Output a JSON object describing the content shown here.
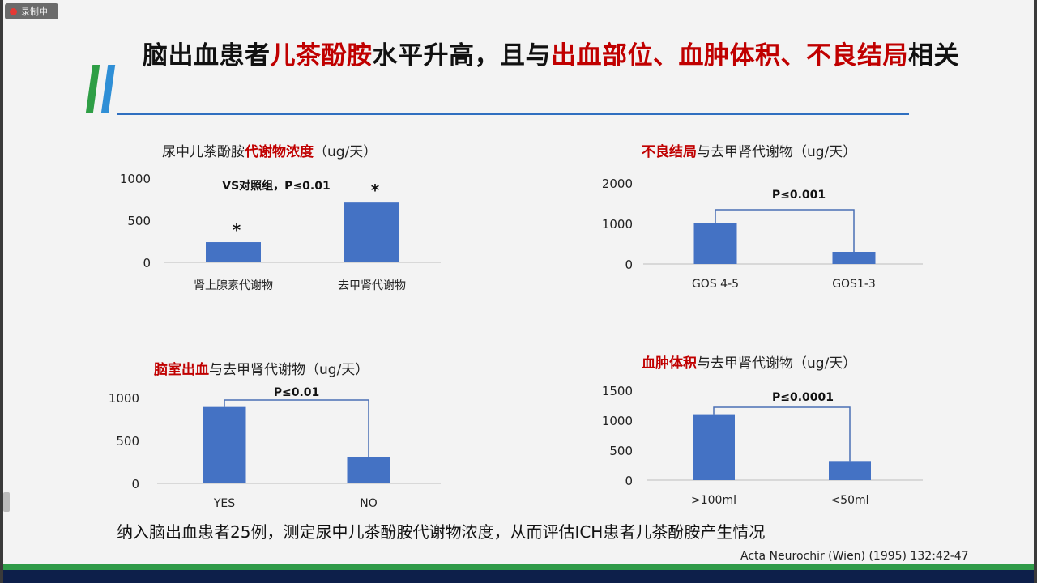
{
  "recording_badge": "录制中",
  "title": {
    "parts": [
      {
        "text": "脑出血患者",
        "red": false
      },
      {
        "text": "儿茶酚胺",
        "red": true
      },
      {
        "text": "水平升高，且与",
        "red": false
      },
      {
        "text": "出血部位、血肿体积、不良结局",
        "red": true
      },
      {
        "text": "相关",
        "red": false
      }
    ]
  },
  "chart_data": [
    {
      "type": "bar",
      "title_parts": [
        {
          "text": "尿中儿茶酚胺",
          "red": false
        },
        {
          "text": "代谢物浓度",
          "red": true
        },
        {
          "text": "（ug/天）",
          "red": false
        }
      ],
      "categories": [
        "肾上腺素代谢物",
        "去甲肾代谢物"
      ],
      "values": [
        240,
        710
      ],
      "ylim": [
        0,
        1000
      ],
      "yticks": [
        0,
        500,
        1000
      ],
      "annotation": "VS对照组，P≤0.01",
      "markers": [
        "*",
        "*"
      ]
    },
    {
      "type": "bar",
      "title_parts": [
        {
          "text": "不良结局",
          "red": true
        },
        {
          "text": "与去甲肾代谢物（ug/天）",
          "red": false
        }
      ],
      "categories": [
        "GOS 4-5",
        "GOS1-3"
      ],
      "values": [
        1000,
        300
      ],
      "ylim": [
        0,
        2000
      ],
      "yticks": [
        0,
        1000,
        2000
      ],
      "annotation": "P≤0.001"
    },
    {
      "type": "bar",
      "title_parts": [
        {
          "text": "脑室出血",
          "red": true
        },
        {
          "text": "与去甲肾代谢物（ug/天）",
          "red": false
        }
      ],
      "categories": [
        "YES",
        "NO"
      ],
      "values": [
        890,
        310
      ],
      "ylim": [
        0,
        1000
      ],
      "yticks": [
        0,
        500,
        1000
      ],
      "annotation": "P≤0.01"
    },
    {
      "type": "bar",
      "title_parts": [
        {
          "text": "血肿体积",
          "red": true
        },
        {
          "text": "与去甲肾代谢物（ug/天）",
          "red": false
        }
      ],
      "categories": [
        ">100ml",
        "<50ml"
      ],
      "values": [
        1100,
        320
      ],
      "ylim": [
        0,
        1500
      ],
      "yticks": [
        0,
        500,
        1000,
        1500
      ],
      "annotation": "P≤0.0001"
    }
  ],
  "footer": "纳入脑出血患者25例，测定尿中儿茶酚胺代谢物浓度，从而评估ICH患者儿茶酚胺产生情况",
  "citation": "Acta Neurochir (Wien) (1995) 132:42-47",
  "colors": {
    "bar": "#4472c4",
    "bracket": "#4a6fb5",
    "red": "#c00000",
    "accent_green": "#2e9e45",
    "accent_blue": "#2f8fd6"
  }
}
